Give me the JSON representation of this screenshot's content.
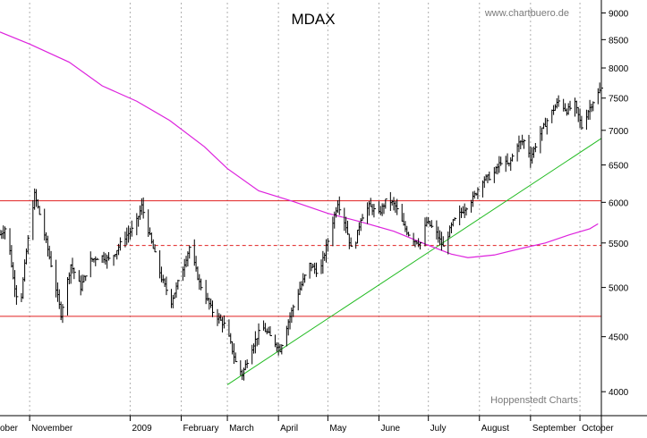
{
  "chart_data": {
    "type": "ohlc-line",
    "title": "MDAX",
    "watermark_top": "www.chartbuero.de",
    "watermark_bottom": "Hoppenstedt Charts",
    "y_scale": "log",
    "ylim": [
      3800,
      9200
    ],
    "y_ticks": [
      4000,
      4500,
      5000,
      5500,
      6000,
      6500,
      7000,
      7500,
      8000,
      8500,
      9000
    ],
    "x_start": "2008-10-14",
    "x_end": "2009-10-14",
    "x_ticks": [
      {
        "label": "ober",
        "date": "2008-10-01"
      },
      {
        "label": "November",
        "date": "2008-11-01"
      },
      {
        "label": "2009",
        "date": "2009-01-01"
      },
      {
        "label": "February",
        "date": "2009-02-01"
      },
      {
        "label": "March",
        "date": "2009-03-01"
      },
      {
        "label": "April",
        "date": "2009-04-01"
      },
      {
        "label": "May",
        "date": "2009-05-01"
      },
      {
        "label": "June",
        "date": "2009-06-01"
      },
      {
        "label": "July",
        "date": "2009-07-01"
      },
      {
        "label": "August",
        "date": "2009-08-01"
      },
      {
        "label": "September",
        "date": "2009-09-01"
      },
      {
        "label": "October",
        "date": "2009-10-01"
      }
    ],
    "gridlines": "vertical-dotted",
    "horizontal_lines": [
      {
        "value": 6020,
        "style": "solid",
        "color": "#e02020"
      },
      {
        "value": 4700,
        "style": "solid",
        "color": "#e02020"
      },
      {
        "value": 5470,
        "style": "dashed",
        "color": "#e02020",
        "from": "2008-12-24"
      }
    ],
    "trend_lines": [
      {
        "from": [
          "2009-03-01",
          4060
        ],
        "to": [
          "2009-10-14",
          6880
        ],
        "color": "#22bb22"
      }
    ],
    "moving_average": {
      "color": "#dd22dd",
      "points": [
        [
          "2008-10-14",
          8640
        ],
        [
          "2008-11-01",
          8420
        ],
        [
          "2008-11-25",
          8100
        ],
        [
          "2008-12-15",
          7700
        ],
        [
          "2009-01-05",
          7450
        ],
        [
          "2009-01-25",
          7150
        ],
        [
          "2009-02-15",
          6760
        ],
        [
          "2009-03-01",
          6450
        ],
        [
          "2009-03-20",
          6150
        ],
        [
          "2009-04-10",
          6010
        ],
        [
          "2009-05-01",
          5860
        ],
        [
          "2009-05-20",
          5760
        ],
        [
          "2009-06-10",
          5640
        ],
        [
          "2009-06-30",
          5480
        ],
        [
          "2009-07-15",
          5370
        ],
        [
          "2009-07-25",
          5330
        ],
        [
          "2009-08-10",
          5360
        ],
        [
          "2009-08-25",
          5430
        ],
        [
          "2009-09-10",
          5500
        ],
        [
          "2009-09-25",
          5600
        ],
        [
          "2009-10-07",
          5670
        ],
        [
          "2009-10-12",
          5730
        ]
      ]
    },
    "price_path": [
      [
        "2008-10-14",
        5600
      ],
      [
        "2008-10-18",
        5700
      ],
      [
        "2008-10-22",
        5100
      ],
      [
        "2008-10-26",
        4750
      ],
      [
        "2008-10-30",
        5400
      ],
      [
        "2008-11-04",
        6100
      ],
      [
        "2008-11-10",
        5600
      ],
      [
        "2008-11-14",
        5250
      ],
      [
        "2008-11-20",
        4720
      ],
      [
        "2008-11-26",
        5250
      ],
      [
        "2008-12-02",
        5000
      ],
      [
        "2008-12-08",
        5300
      ],
      [
        "2008-12-14",
        5350
      ],
      [
        "2008-12-20",
        5300
      ],
      [
        "2008-12-28",
        5550
      ],
      [
        "2009-01-04",
        5700
      ],
      [
        "2009-01-08",
        5950
      ],
      [
        "2009-01-14",
        5500
      ],
      [
        "2009-01-20",
        5100
      ],
      [
        "2009-01-26",
        4850
      ],
      [
        "2009-02-01",
        5150
      ],
      [
        "2009-02-06",
        5450
      ],
      [
        "2009-02-12",
        5050
      ],
      [
        "2009-02-20",
        4750
      ],
      [
        "2009-02-28",
        4600
      ],
      [
        "2009-03-06",
        4260
      ],
      [
        "2009-03-10",
        4150
      ],
      [
        "2009-03-16",
        4400
      ],
      [
        "2009-03-22",
        4600
      ],
      [
        "2009-03-28",
        4480
      ],
      [
        "2009-04-02",
        4380
      ],
      [
        "2009-04-06",
        4600
      ],
      [
        "2009-04-12",
        4900
      ],
      [
        "2009-04-20",
        5250
      ],
      [
        "2009-04-26",
        5150
      ],
      [
        "2009-05-02",
        5600
      ],
      [
        "2009-05-07",
        6000
      ],
      [
        "2009-05-12",
        5700
      ],
      [
        "2009-05-16",
        5350
      ],
      [
        "2009-05-21",
        5800
      ],
      [
        "2009-05-26",
        5950
      ],
      [
        "2009-06-01",
        5850
      ],
      [
        "2009-06-06",
        6050
      ],
      [
        "2009-06-11",
        5950
      ],
      [
        "2009-06-16",
        5700
      ],
      [
        "2009-06-21",
        5550
      ],
      [
        "2009-06-26",
        5500
      ],
      [
        "2009-06-30",
        5750
      ],
      [
        "2009-07-05",
        5650
      ],
      [
        "2009-07-10",
        5450
      ],
      [
        "2009-07-16",
        5750
      ],
      [
        "2009-07-22",
        5900
      ],
      [
        "2009-07-28",
        6050
      ],
      [
        "2009-08-03",
        6300
      ],
      [
        "2009-08-09",
        6350
      ],
      [
        "2009-08-14",
        6550
      ],
      [
        "2009-08-19",
        6500
      ],
      [
        "2009-08-24",
        6800
      ],
      [
        "2009-08-29",
        6850
      ],
      [
        "2009-09-01",
        6600
      ],
      [
        "2009-09-06",
        6900
      ],
      [
        "2009-09-12",
        7200
      ],
      [
        "2009-09-18",
        7450
      ],
      [
        "2009-09-23",
        7300
      ],
      [
        "2009-09-28",
        7400
      ],
      [
        "2009-10-02",
        7050
      ],
      [
        "2009-10-06",
        7300
      ],
      [
        "2009-10-10",
        7500
      ],
      [
        "2009-10-14",
        7650
      ]
    ],
    "colors": {
      "price": "#000000",
      "axis_label": "#000000",
      "watermark": "#7a7a7a",
      "grid": "#b0b0b0",
      "frame": "#000000"
    }
  }
}
